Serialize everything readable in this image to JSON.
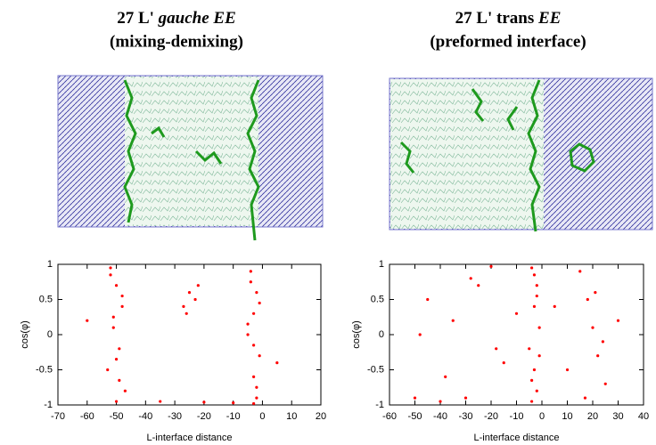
{
  "chart_data": [
    {
      "type": "scatter",
      "title": "27 L'",
      "title_italic": "gauche EE",
      "subtitle": "(mixing-demixing)",
      "x_label": "L-interface distance",
      "y_label": "cos(φ)",
      "color": "#ff0000",
      "xlim": [
        -70,
        20
      ],
      "xticks": [
        -70,
        -60,
        -50,
        -40,
        -30,
        -20,
        -10,
        0,
        10,
        20
      ],
      "ylim": [
        -1,
        1
      ],
      "yticks": [
        -1,
        -0.5,
        0,
        0.5,
        1
      ],
      "x": [
        -52,
        -50,
        -48,
        -51,
        -49,
        -53,
        -47,
        -50,
        -52,
        -49,
        -51,
        -48,
        -50,
        -4,
        -2,
        -3,
        -5,
        -1,
        -3,
        -2,
        -4,
        -3,
        -1,
        -2,
        -5,
        -3,
        -25,
        -27,
        -23,
        -26,
        -22,
        -35,
        -10,
        -20,
        -60,
        5
      ],
      "y": [
        0.95,
        0.7,
        0.4,
        0.1,
        -0.2,
        -0.5,
        -0.8,
        -0.95,
        0.85,
        -0.65,
        0.25,
        0.55,
        -0.35,
        0.9,
        0.6,
        0.3,
        0,
        -0.3,
        -0.6,
        -0.9,
        0.75,
        -0.15,
        0.45,
        -0.75,
        0.15,
        -0.98,
        0.6,
        0.4,
        0.5,
        0.3,
        0.7,
        -0.95,
        -0.97,
        -0.96,
        0.2,
        -0.4
      ]
    },
    {
      "type": "scatter",
      "title": "27 L' trans",
      "title_italic": "EE",
      "subtitle": "(preformed interface)",
      "x_label": "L-interface distance",
      "y_label": "cos(φ)",
      "color": "#ff0000",
      "xlim": [
        -60,
        40
      ],
      "xticks": [
        -60,
        -50,
        -40,
        -30,
        -20,
        -10,
        0,
        10,
        20,
        30,
        40
      ],
      "ylim": [
        -1,
        1
      ],
      "yticks": [
        -1,
        -0.5,
        0,
        0.5,
        1
      ],
      "x": [
        -4,
        -2,
        -3,
        -1,
        -5,
        -3,
        -2,
        -4,
        -3,
        -1,
        -2,
        -4,
        -50,
        -45,
        -40,
        -35,
        -30,
        -25,
        -20,
        -15,
        -10,
        -48,
        -38,
        -28,
        -18,
        15,
        18,
        20,
        22,
        25,
        17,
        21,
        24,
        5,
        10,
        30
      ],
      "y": [
        0.95,
        0.7,
        0.4,
        0.1,
        -0.2,
        -0.5,
        -0.8,
        -0.95,
        0.85,
        -0.3,
        0.55,
        -0.65,
        -0.9,
        0.5,
        -0.95,
        0.2,
        -0.9,
        0.7,
        0.97,
        -0.4,
        0.3,
        0,
        -0.6,
        0.8,
        -0.2,
        0.9,
        0.5,
        0.1,
        -0.3,
        -0.7,
        -0.9,
        0.6,
        -0.1,
        0.4,
        -0.5,
        0.2
      ]
    }
  ]
}
